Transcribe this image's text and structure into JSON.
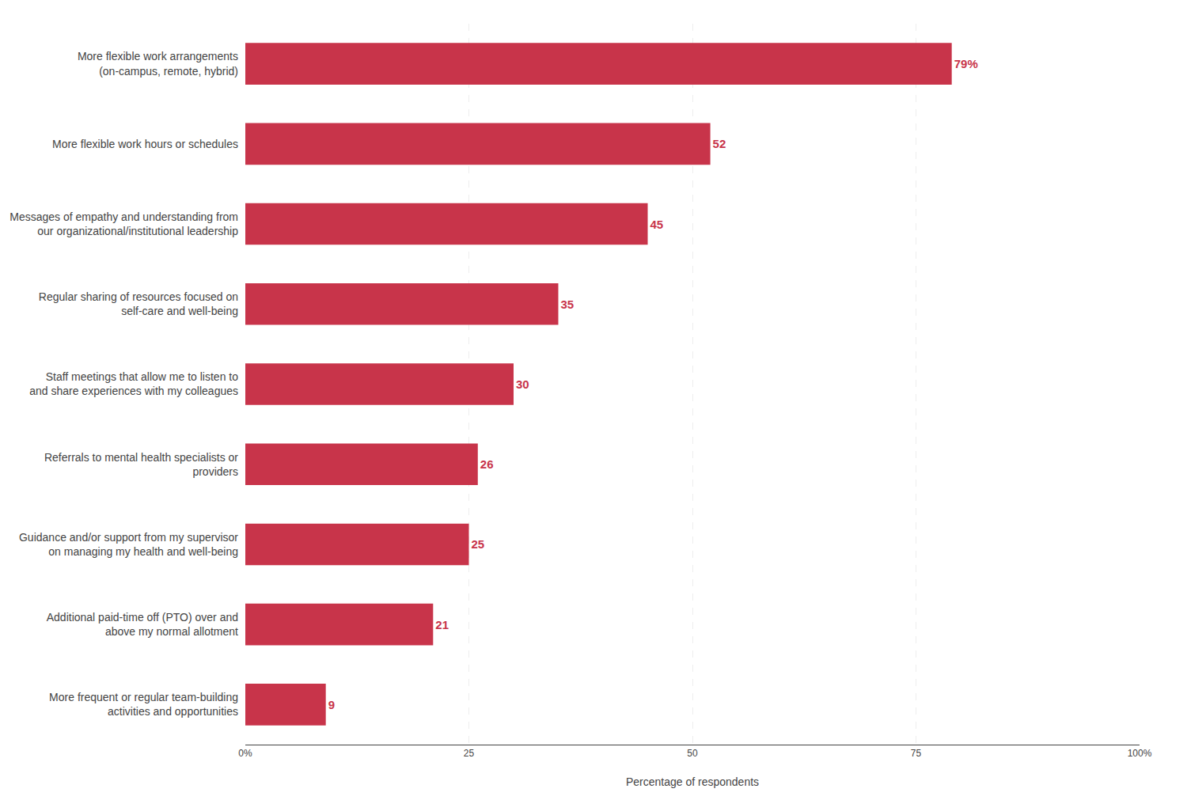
{
  "chart_data": {
    "type": "bar",
    "orientation": "horizontal",
    "xlabel": "Percentage of respondents",
    "categories": [
      "More frequent or regular team-building\nactivities and opportunities",
      "Additional paid-time off (PTO) over and\nabove my normal allotment",
      "Guidance and/or support from my supervisor\non managing my health and well-being",
      "Referrals to mental health specialists or\nproviders",
      "Staff meetings that allow me to listen to\nand share experiences with my colleagues",
      "Regular sharing of resources focused on\nself-care and well-being",
      "Messages of empathy and understanding from\nour organizational/institutional leadership",
      "More flexible work hours or schedules",
      "More flexible work arrangements\n(on-campus, remote, hybrid)"
    ],
    "values": [
      9,
      21,
      25,
      26,
      30,
      35,
      45,
      52,
      79
    ],
    "value_labels": [
      "9",
      "21",
      "25",
      "26",
      "30",
      "35",
      "45",
      "52",
      "79%"
    ],
    "data_labels": true,
    "color": "#C8344A",
    "xlim": [
      0,
      100
    ],
    "xticks": [
      {
        "value": 0,
        "label": "0%"
      },
      25,
      50,
      75,
      {
        "value": 100,
        "label": "100%"
      }
    ],
    "grid": true
  }
}
